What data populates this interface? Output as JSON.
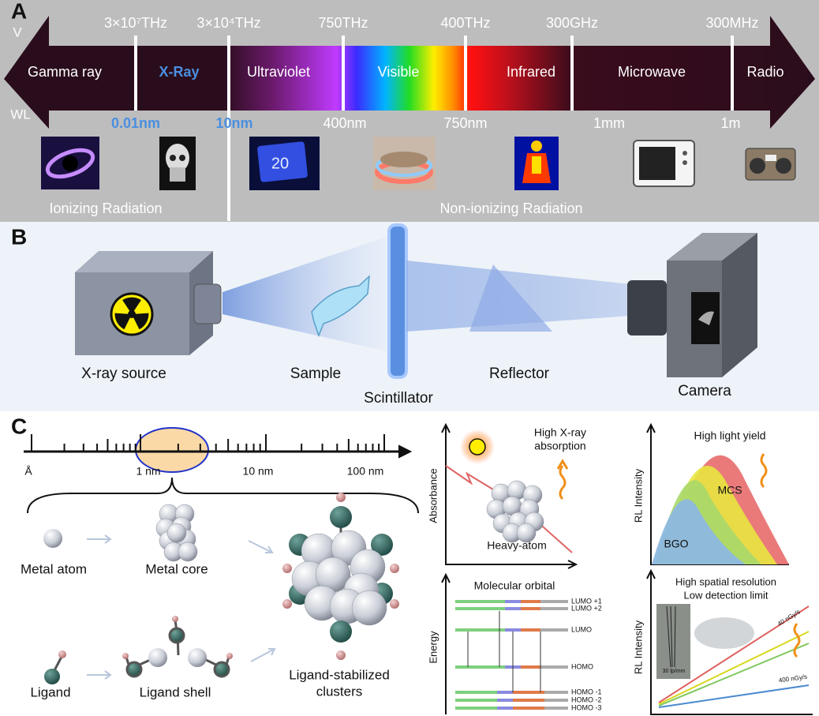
{
  "panel_a": {
    "label": "A",
    "axis_top": "V",
    "axis_bottom": "WL",
    "frequencies": [
      "3×10⁷THz",
      "3×10⁴THz",
      "750THz",
      "400THz",
      "300GHz",
      "300MHz"
    ],
    "bands": [
      "Gamma ray",
      "X-Ray",
      "Ultraviolet",
      "Visible",
      "Infrared",
      "Microwave",
      "Radio"
    ],
    "wavelengths": [
      "0.01nm",
      "10nm",
      "400nm",
      "750nm",
      "1mm",
      "1m"
    ],
    "uv_card_text": "20",
    "ionizing": "Ionizing Radiation",
    "non_ionizing": "Non-ionizing Radiation"
  },
  "panel_b": {
    "label": "B",
    "source": "X-ray source",
    "sample": "Sample",
    "scintillator": "Scintillator",
    "reflector": "Reflector",
    "camera": "Camera"
  },
  "panel_c": {
    "label": "C",
    "scale_labels": [
      "Å",
      "1 nm",
      "10 nm",
      "100 nm"
    ],
    "metal_atom": "Metal atom",
    "metal_core": "Metal core",
    "ligand": "Ligand",
    "ligand_shell": "Ligand shell",
    "clusters": [
      "Ligand-stabilized",
      "clusters"
    ],
    "absorbance_plot": {
      "y_label": "Absorbance",
      "title": [
        "High X-ray",
        "absorption"
      ],
      "annotation": "Heavy-atom"
    },
    "light_yield_plot": {
      "y_label": "RL Intensity",
      "title": "High light yield",
      "curves": [
        "MCS",
        "BGO"
      ]
    },
    "orbital_plot": {
      "y_label": "Energy",
      "title": "Molecular orbital",
      "levels": [
        "LUMO +1",
        "LUMO +2",
        "LUMO",
        "HOMO",
        "HOMO -1",
        "HOMO -2",
        "HOMO -3"
      ]
    },
    "resolution_plot": {
      "y_label": "RL Intensity",
      "title": [
        "High spatial resolution",
        "Low detection limit"
      ],
      "line_labels": [
        "40 nGy/s",
        "400 nGy/s"
      ],
      "inset": "30 lp/mm"
    }
  }
}
